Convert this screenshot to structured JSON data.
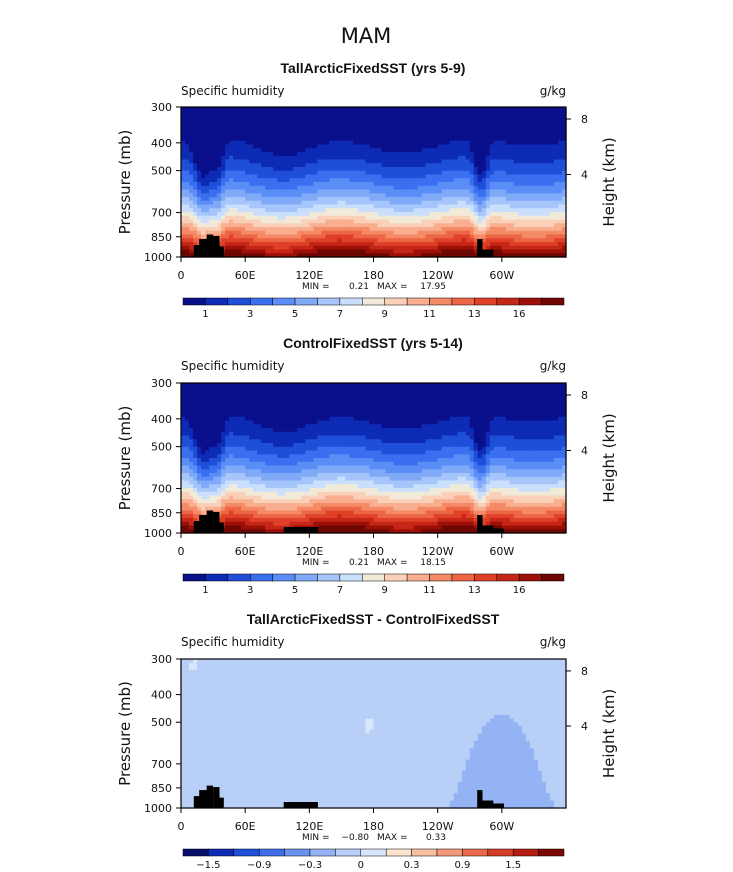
{
  "page_title": "MAM",
  "chart_data": [
    {
      "type": "heatmap",
      "title": "TallArcticFixedSST (yrs 5-9)",
      "left_label": "Specific humidity",
      "units": "g/kg",
      "ylabel": "Pressure (mb)",
      "ylabel_right": "Height (km)",
      "x_ticks": [
        "0",
        "60E",
        "120E",
        "180",
        "120W",
        "60W"
      ],
      "y_ticks": [
        "300",
        "400",
        "500",
        "700",
        "850",
        "1000"
      ],
      "y_right_ticks": [
        "8",
        "4"
      ],
      "min_label": "MIN =",
      "min_value": "0.21",
      "max_label": "MAX =",
      "max_value": "17.95",
      "colorbar_labels": [
        "1",
        "3",
        "5",
        "7",
        "9",
        "11",
        "13",
        "16"
      ],
      "mode": "abs"
    },
    {
      "type": "heatmap",
      "title": "ControlFixedSST (yrs 5-14)",
      "left_label": "Specific humidity",
      "units": "g/kg",
      "ylabel": "Pressure (mb)",
      "ylabel_right": "Height (km)",
      "x_ticks": [
        "0",
        "60E",
        "120E",
        "180",
        "120W",
        "60W"
      ],
      "y_ticks": [
        "300",
        "400",
        "500",
        "700",
        "850",
        "1000"
      ],
      "y_right_ticks": [
        "8",
        "4"
      ],
      "min_label": "MIN =",
      "min_value": "0.21",
      "max_label": "MAX =",
      "max_value": "18.15",
      "colorbar_labels": [
        "1",
        "3",
        "5",
        "7",
        "9",
        "11",
        "13",
        "16"
      ],
      "mode": "abs"
    },
    {
      "type": "heatmap",
      "title": "TallArcticFixedSST - ControlFixedSST",
      "left_label": "Specific humidity",
      "units": "g/kg",
      "ylabel": "Pressure (mb)",
      "ylabel_right": "Height (km)",
      "x_ticks": [
        "0",
        "60E",
        "120E",
        "180",
        "120W",
        "60W"
      ],
      "y_ticks": [
        "300",
        "400",
        "500",
        "700",
        "850",
        "1000"
      ],
      "y_right_ticks": [
        "8",
        "4"
      ],
      "min_label": "MIN =",
      "min_value": "−0.80",
      "max_label": "MAX =",
      "max_value": "0.33",
      "colorbar_labels": [
        "−1.5",
        "−0.9",
        "−0.3",
        "0",
        "0.3",
        "0.9",
        "1.5"
      ],
      "mode": "diff"
    }
  ],
  "colors": {
    "abs_palette": [
      "#0a0f8c",
      "#0d2bb5",
      "#1f4fd8",
      "#3a6ff0",
      "#5a8df5",
      "#80aaf8",
      "#a6c6fb",
      "#cadffc",
      "#f1ead8",
      "#fbd0b8",
      "#f8ae8f",
      "#f48a66",
      "#ec6544",
      "#de4128",
      "#c52618",
      "#9c1008",
      "#6e0702"
    ],
    "diff_palette": [
      "#08106e",
      "#0d2bb5",
      "#1f4fd8",
      "#3f6fe8",
      "#6b92ee",
      "#94b3f4",
      "#b8cff8",
      "#d8e6fb",
      "#fce3cc",
      "#f7c0a0",
      "#f29978",
      "#e96a4c",
      "#d43d26",
      "#b31c10",
      "#7c0704"
    ],
    "topography": "#000000"
  }
}
